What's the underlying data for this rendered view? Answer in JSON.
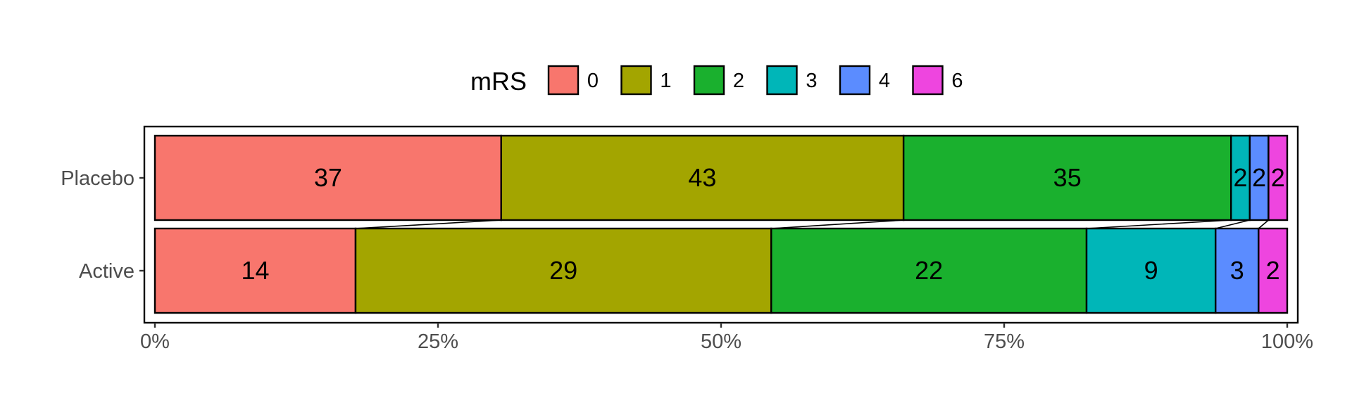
{
  "chart_data": {
    "type": "bar",
    "orientation": "horizontal",
    "stacked": "percent",
    "categories": [
      "Placebo",
      "Active"
    ],
    "legend": {
      "title": "mRS",
      "position": "top"
    },
    "series": [
      {
        "name": "0",
        "color": "#F8766D",
        "values": [
          37,
          14
        ]
      },
      {
        "name": "1",
        "color": "#A3A500",
        "values": [
          43,
          29
        ]
      },
      {
        "name": "2",
        "color": "#1AB02E",
        "values": [
          35,
          22
        ]
      },
      {
        "name": "3",
        "color": "#00B6B8",
        "values": [
          2,
          9
        ]
      },
      {
        "name": "4",
        "color": "#5B8CFF",
        "values": [
          2,
          3
        ]
      },
      {
        "name": "6",
        "color": "#EE45DF",
        "values": [
          2,
          2
        ]
      }
    ],
    "x_ticks": [
      "0%",
      "25%",
      "50%",
      "75%",
      "100%"
    ],
    "xlim": [
      0,
      1
    ],
    "grid": false
  }
}
